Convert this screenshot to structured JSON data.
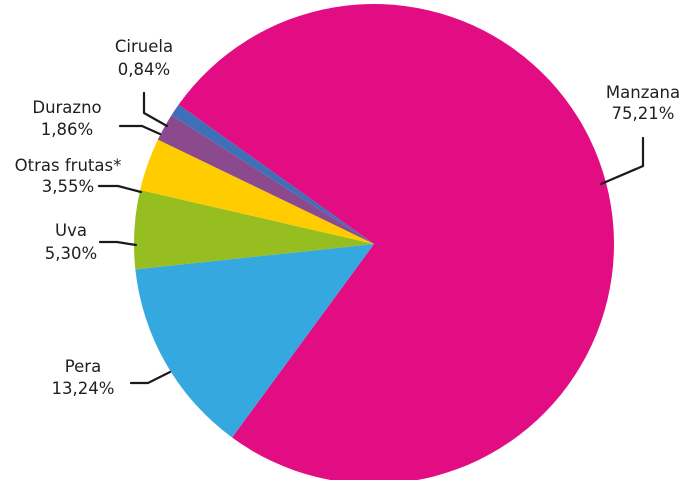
{
  "chart_data": {
    "type": "pie",
    "title": "",
    "slices": [
      {
        "name": "Manzana",
        "label": "75,21%",
        "value": 75.21,
        "color": "#E20D83"
      },
      {
        "name": "Pera",
        "label": "13,24%",
        "value": 13.24,
        "color": "#35A8E0"
      },
      {
        "name": "Uva",
        "label": "5,30%",
        "value": 5.3,
        "color": "#97BE20"
      },
      {
        "name": "Otras frutas*",
        "label": "3,55%",
        "value": 3.55,
        "color": "#FFCC00"
      },
      {
        "name": "Durazno",
        "label": "1,86%",
        "value": 1.86,
        "color": "#8C4A8E"
      },
      {
        "name": "Ciruela",
        "label": "0,84%",
        "value": 0.84,
        "color": "#3F6FB6"
      }
    ]
  }
}
